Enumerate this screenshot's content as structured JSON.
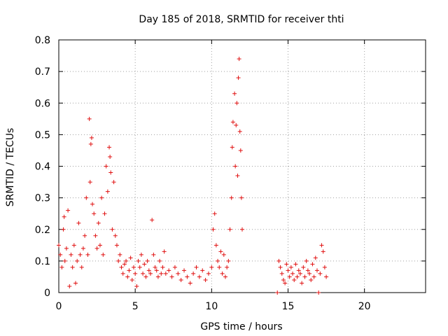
{
  "chart_data": {
    "type": "scatter",
    "title": "Day 185 of 2018, SRMTID for receiver thti",
    "xlabel": "GPS time / hours",
    "ylabel": "SRMTID / TECUs",
    "xlim": [
      0,
      24
    ],
    "ylim": [
      0,
      0.8
    ],
    "x_ticks": [
      0,
      5,
      10,
      15,
      20
    ],
    "x_tick_labels": [
      "0",
      "5",
      "10",
      "15",
      "20"
    ],
    "y_ticks": [
      0,
      0.1,
      0.2,
      0.3,
      0.4,
      0.5,
      0.6,
      0.7,
      0.8
    ],
    "y_tick_labels": [
      "0",
      "0.1",
      "0.2",
      "0.3",
      "0.4",
      "0.5",
      "0.6",
      "0.7",
      "0.8"
    ],
    "grid": true,
    "marker": "+",
    "color": "#e01010",
    "series": [
      {
        "name": "SRMTID",
        "x": [
          0.0,
          0.1,
          0.2,
          0.3,
          0.35,
          0.4,
          0.5,
          0.6,
          0.7,
          0.8,
          0.9,
          1.0,
          1.1,
          1.2,
          1.3,
          1.4,
          1.5,
          1.6,
          1.7,
          1.8,
          1.9,
          2.0,
          2.05,
          2.1,
          2.15,
          2.2,
          2.3,
          2.4,
          2.5,
          2.6,
          2.7,
          2.8,
          2.9,
          3.0,
          3.1,
          3.2,
          3.3,
          3.35,
          3.4,
          3.5,
          3.6,
          3.7,
          3.8,
          3.9,
          4.0,
          4.1,
          4.2,
          4.3,
          4.4,
          4.5,
          4.6,
          4.7,
          4.8,
          4.9,
          5.0,
          5.1,
          5.2,
          5.3,
          5.4,
          5.5,
          5.6,
          5.7,
          5.8,
          5.9,
          6.0,
          6.1,
          6.2,
          6.3,
          6.4,
          6.5,
          6.6,
          6.7,
          6.8,
          6.9,
          7.0,
          7.2,
          7.4,
          7.6,
          7.8,
          8.0,
          8.2,
          8.4,
          8.6,
          8.8,
          9.0,
          9.2,
          9.4,
          9.6,
          9.8,
          10.0,
          10.1,
          10.2,
          10.3,
          10.4,
          10.5,
          10.6,
          10.7,
          10.8,
          10.9,
          11.0,
          11.1,
          11.2,
          11.3,
          11.35,
          11.4,
          11.5,
          11.55,
          11.6,
          11.65,
          11.7,
          11.75,
          11.8,
          11.85,
          11.9,
          11.95,
          12.0,
          14.3,
          14.4,
          14.5,
          14.6,
          14.7,
          14.8,
          14.9,
          15.0,
          15.1,
          15.2,
          15.3,
          15.4,
          15.5,
          15.6,
          15.7,
          15.8,
          15.9,
          16.0,
          16.1,
          16.2,
          16.3,
          16.4,
          16.5,
          16.6,
          16.7,
          16.8,
          16.9,
          17.0,
          17.1,
          17.2,
          17.3,
          17.4,
          17.5
        ],
        "y": [
          0.15,
          0.12,
          0.08,
          0.2,
          0.24,
          0.1,
          0.14,
          0.26,
          0.02,
          0.12,
          0.08,
          0.15,
          0.03,
          0.1,
          0.22,
          0.12,
          0.08,
          0.14,
          0.18,
          0.3,
          0.12,
          0.55,
          0.35,
          0.47,
          0.49,
          0.28,
          0.25,
          0.18,
          0.14,
          0.22,
          0.15,
          0.3,
          0.12,
          0.25,
          0.4,
          0.32,
          0.46,
          0.43,
          0.38,
          0.2,
          0.35,
          0.18,
          0.15,
          0.1,
          0.12,
          0.08,
          0.06,
          0.09,
          0.1,
          0.05,
          0.07,
          0.11,
          0.04,
          0.08,
          0.06,
          0.02,
          0.1,
          0.08,
          0.12,
          0.06,
          0.09,
          0.05,
          0.1,
          0.07,
          0.06,
          0.23,
          0.12,
          0.08,
          0.07,
          0.05,
          0.1,
          0.06,
          0.08,
          0.13,
          0.06,
          0.07,
          0.05,
          0.08,
          0.06,
          0.04,
          0.07,
          0.05,
          0.03,
          0.06,
          0.08,
          0.05,
          0.07,
          0.04,
          0.06,
          0.08,
          0.2,
          0.25,
          0.15,
          0.1,
          0.08,
          0.13,
          0.06,
          0.12,
          0.05,
          0.08,
          0.1,
          0.2,
          0.3,
          0.46,
          0.54,
          0.63,
          0.4,
          0.53,
          0.6,
          0.37,
          0.68,
          0.74,
          0.51,
          0.45,
          0.3,
          0.2,
          0.0,
          0.1,
          0.08,
          0.06,
          0.04,
          0.03,
          0.09,
          0.07,
          0.05,
          0.08,
          0.06,
          0.04,
          0.09,
          0.05,
          0.07,
          0.06,
          0.03,
          0.08,
          0.05,
          0.1,
          0.07,
          0.06,
          0.04,
          0.09,
          0.05,
          0.11,
          0.07,
          0.0,
          0.06,
          0.15,
          0.13,
          0.08,
          0.05
        ]
      }
    ]
  }
}
